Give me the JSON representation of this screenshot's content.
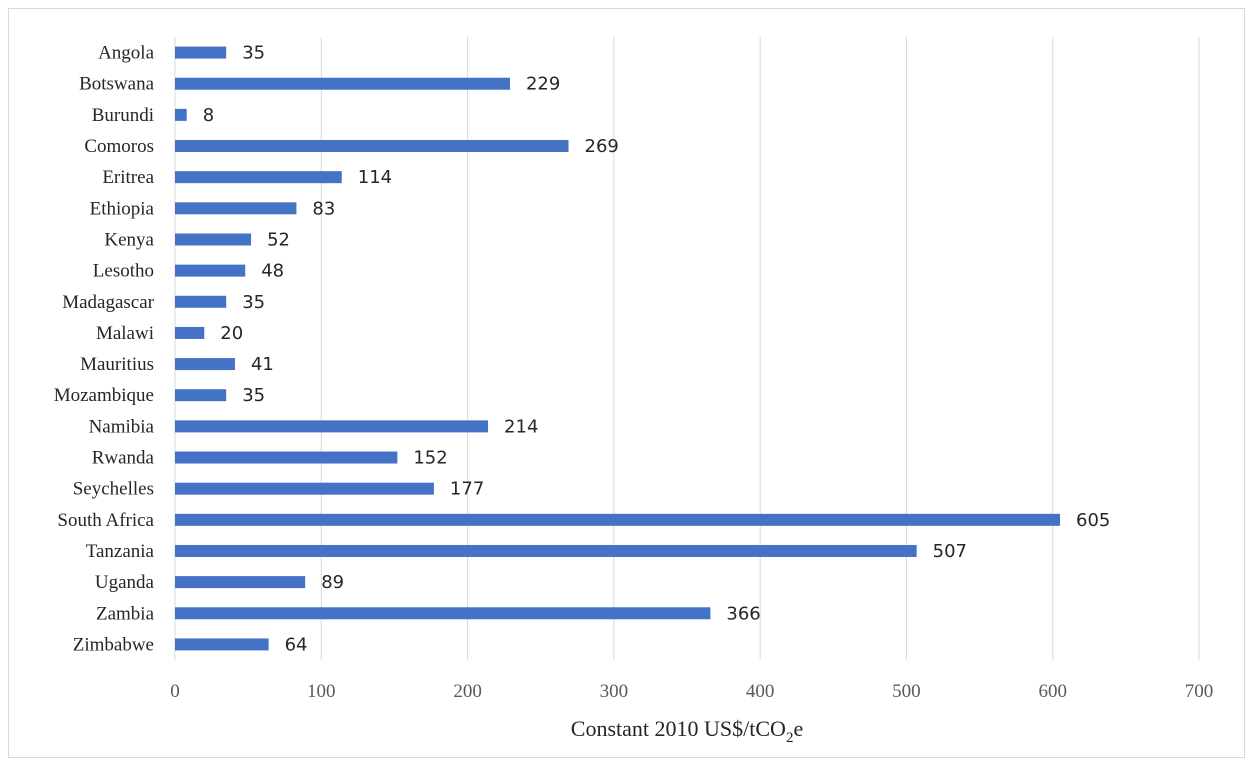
{
  "chart_data": {
    "type": "bar",
    "orientation": "horizontal",
    "categories": [
      "Angola",
      "Botswana",
      "Burundi",
      "Comoros",
      "Eritrea",
      "Ethiopia",
      "Kenya",
      "Lesotho",
      "Madagascar",
      "Malawi",
      "Mauritius",
      "Mozambique",
      "Namibia",
      "Rwanda",
      "Seychelles",
      "South Africa",
      "Tanzania",
      "Uganda",
      "Zambia",
      "Zimbabwe"
    ],
    "values": [
      35,
      229,
      8,
      269,
      114,
      83,
      52,
      48,
      35,
      20,
      41,
      35,
      214,
      152,
      177,
      605,
      507,
      89,
      366,
      64
    ],
    "xlabel": {
      "main": "Constant 2010 US$/tCO",
      "subscript": "2",
      "suffix": "e"
    },
    "xlim": [
      0,
      700
    ],
    "xticks": [
      0,
      100,
      200,
      300,
      400,
      500,
      600,
      700
    ],
    "grid": "vertical",
    "bar_color": "#4472c4",
    "gridline_color": "#d9d9d9",
    "data_labels": true,
    "legend": "none"
  }
}
